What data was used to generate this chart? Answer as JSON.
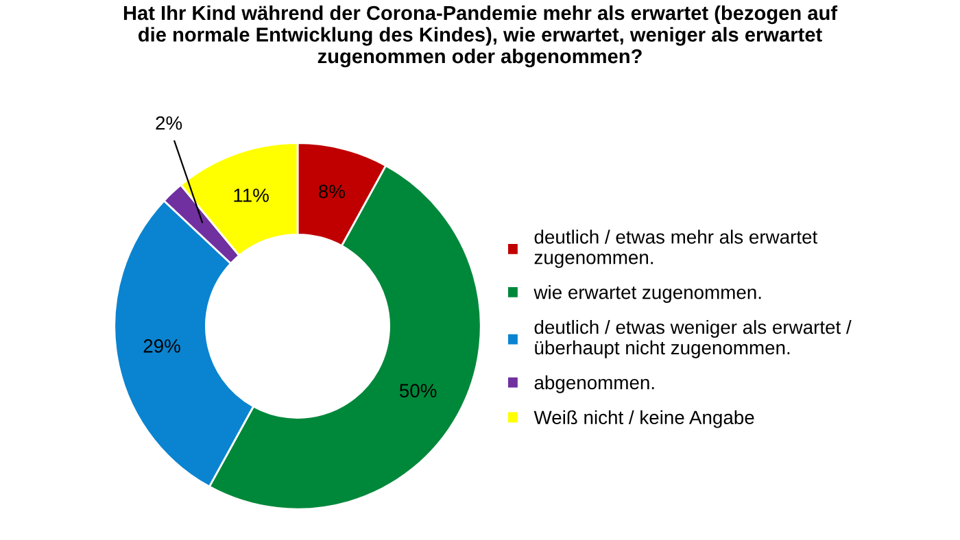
{
  "chart_data": {
    "type": "donut",
    "title": "Hat Ihr Kind während der Corona-Pandemie mehr als erwartet (bezogen auf\ndie normale Entwicklung des Kindes), wie erwartet, weniger als erwartet\nzugenommen oder abgenommen?",
    "categories": [
      "deutlich / etwas mehr als erwartet\nzugenommen.",
      "wie erwartet zugenommen.",
      "deutlich / etwas weniger als erwartet /\nüberhaupt nicht zugenommen.",
      "abgenommen.",
      "Weiß nicht / keine Angabe"
    ],
    "values": [
      8,
      50,
      29,
      2,
      11
    ],
    "colors": [
      "#c00000",
      "#00883a",
      "#0a84d0",
      "#7030a0",
      "#ffff00"
    ],
    "value_labels": [
      "8%",
      "50%",
      "29%",
      "2%",
      "11%"
    ],
    "legend": "right"
  }
}
